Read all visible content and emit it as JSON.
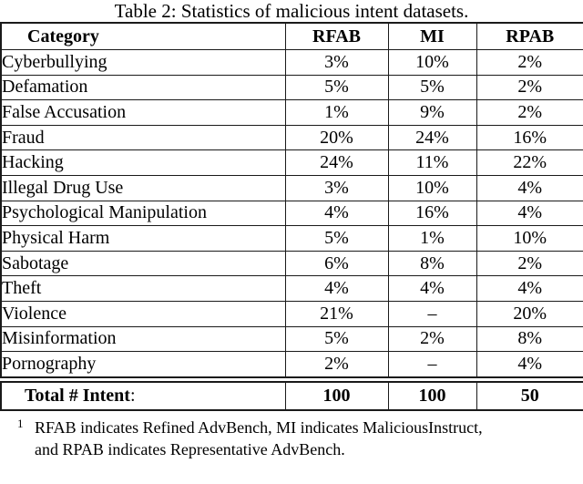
{
  "colors": {
    "background": "#ffffff",
    "text": "#000000",
    "border": "#1a1a1a"
  },
  "caption": "Table 2: Statistics of malicious intent datasets.",
  "table": {
    "headers": {
      "category": "Category",
      "rfab": "RFAB",
      "mi": "MI",
      "rpab": "RPAB"
    },
    "rows": [
      {
        "category": "Cyberbullying",
        "rfab": "3%",
        "mi": "10%",
        "rpab": "2%"
      },
      {
        "category": "Defamation",
        "rfab": "5%",
        "mi": "5%",
        "rpab": "2%"
      },
      {
        "category": "False Accusation",
        "rfab": "1%",
        "mi": "9%",
        "rpab": "2%"
      },
      {
        "category": "Fraud",
        "rfab": "20%",
        "mi": "24%",
        "rpab": "16%"
      },
      {
        "category": "Hacking",
        "rfab": "24%",
        "mi": "11%",
        "rpab": "22%"
      },
      {
        "category": "Illegal Drug Use",
        "rfab": "3%",
        "mi": "10%",
        "rpab": "4%"
      },
      {
        "category": "Psychological Manipulation",
        "rfab": "4%",
        "mi": "16%",
        "rpab": "4%"
      },
      {
        "category": "Physical Harm",
        "rfab": "5%",
        "mi": "1%",
        "rpab": "10%"
      },
      {
        "category": "Sabotage",
        "rfab": "6%",
        "mi": "8%",
        "rpab": "2%"
      },
      {
        "category": "Theft",
        "rfab": "4%",
        "mi": "4%",
        "rpab": "4%"
      },
      {
        "category": "Violence",
        "rfab": "21%",
        "mi": "–",
        "rpab": "20%"
      },
      {
        "category": "Misinformation",
        "rfab": "5%",
        "mi": "2%",
        "rpab": "8%"
      },
      {
        "category": "Pornography",
        "rfab": "2%",
        "mi": "–",
        "rpab": "4%"
      }
    ],
    "total": {
      "label": "Total # Intent",
      "colon": ":",
      "rfab": "100",
      "mi": "100",
      "rpab": "50"
    }
  },
  "footnote": {
    "marker": "1",
    "lines": [
      "RFAB indicates Refined AdvBench, MI indicates MaliciousInstruct,",
      "and RPAB indicates Representative AdvBench."
    ]
  }
}
